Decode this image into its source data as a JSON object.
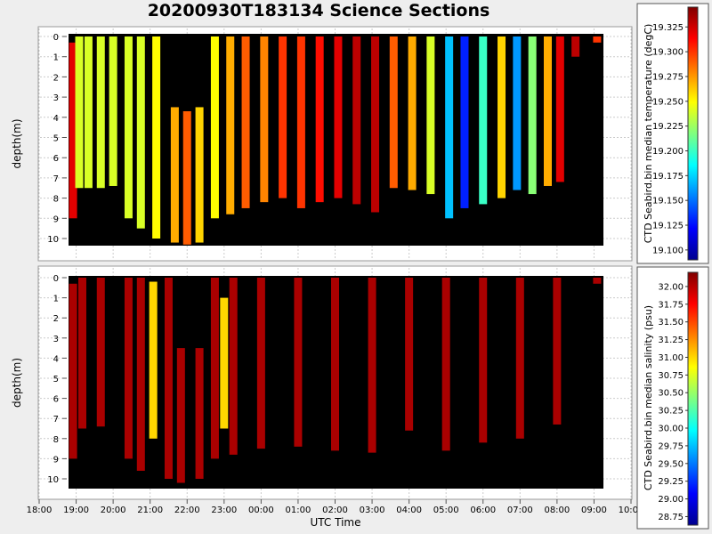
{
  "title": "20200930T183134 Science Sections",
  "chart_data": [
    {
      "type": "heatmap",
      "ylabel": "depth(m)",
      "yticks": [
        0,
        1,
        2,
        3,
        4,
        5,
        6,
        7,
        8,
        9,
        10
      ],
      "ylim": [
        10.4,
        -0.3
      ],
      "xlim": [
        "18:00",
        "10:00"
      ],
      "grid": true,
      "colorbar": {
        "label": "CTD Seabird.bin median temperature (degC)",
        "ticks": [
          "19.100",
          "19.125",
          "19.150",
          "19.175",
          "19.200",
          "19.225",
          "19.250",
          "19.275",
          "19.300",
          "19.325"
        ],
        "range": [
          19.09,
          19.345
        ],
        "colormap": "jet"
      },
      "profiles": [
        {
          "time": "18:55",
          "depth_range": [
            0.3,
            9.0
          ],
          "value": 19.32
        },
        {
          "time": "19:05",
          "depth_range": [
            0.0,
            7.5
          ],
          "value": 19.24
        },
        {
          "time": "19:20",
          "depth_range": [
            0.0,
            7.5
          ],
          "value": 19.24
        },
        {
          "time": "19:40",
          "depth_range": [
            0.0,
            7.5
          ],
          "value": 19.24
        },
        {
          "time": "20:00",
          "depth_range": [
            0.0,
            7.4
          ],
          "value": 19.24
        },
        {
          "time": "20:25",
          "depth_range": [
            0.0,
            9.0
          ],
          "value": 19.24
        },
        {
          "time": "20:45",
          "depth_range": [
            0.0,
            9.5
          ],
          "value": 19.24
        },
        {
          "time": "21:10",
          "depth_range": [
            0.0,
            10.0
          ],
          "value": 19.25
        },
        {
          "time": "21:40",
          "depth_range": [
            3.5,
            10.2
          ],
          "value": 19.27
        },
        {
          "time": "22:00",
          "depth_range": [
            3.7,
            10.3
          ],
          "value": 19.29
        },
        {
          "time": "22:20",
          "depth_range": [
            3.5,
            10.2
          ],
          "value": 19.26
        },
        {
          "time": "22:45",
          "depth_range": [
            0.0,
            9.0
          ],
          "value": 19.25
        },
        {
          "time": "23:10",
          "depth_range": [
            0.0,
            8.8
          ],
          "value": 19.27
        },
        {
          "time": "23:35",
          "depth_range": [
            0.0,
            8.5
          ],
          "value": 19.29
        },
        {
          "time": "00:05",
          "depth_range": [
            0.0,
            8.2
          ],
          "value": 19.28
        },
        {
          "time": "00:35",
          "depth_range": [
            0.0,
            8.0
          ],
          "value": 19.3
        },
        {
          "time": "01:05",
          "depth_range": [
            0.0,
            8.5
          ],
          "value": 19.3
        },
        {
          "time": "01:35",
          "depth_range": [
            0.0,
            8.2
          ],
          "value": 19.31
        },
        {
          "time": "02:05",
          "depth_range": [
            0.0,
            8.0
          ],
          "value": 19.32
        },
        {
          "time": "02:35",
          "depth_range": [
            0.0,
            8.3
          ],
          "value": 19.33
        },
        {
          "time": "03:05",
          "depth_range": [
            0.0,
            8.7
          ],
          "value": 19.33
        },
        {
          "time": "03:35",
          "depth_range": [
            0.0,
            7.5
          ],
          "value": 19.29
        },
        {
          "time": "04:05",
          "depth_range": [
            0.0,
            7.6
          ],
          "value": 19.27
        },
        {
          "time": "04:35",
          "depth_range": [
            0.0,
            7.8
          ],
          "value": 19.24
        },
        {
          "time": "05:05",
          "depth_range": [
            0.0,
            9.0
          ],
          "value": 19.17
        },
        {
          "time": "05:30",
          "depth_range": [
            0.0,
            8.5
          ],
          "value": 19.13
        },
        {
          "time": "06:00",
          "depth_range": [
            0.0,
            8.3
          ],
          "value": 19.2
        },
        {
          "time": "06:30",
          "depth_range": [
            0.0,
            8.0
          ],
          "value": 19.26
        },
        {
          "time": "06:55",
          "depth_range": [
            0.0,
            7.6
          ],
          "value": 19.16
        },
        {
          "time": "07:20",
          "depth_range": [
            0.0,
            7.8
          ],
          "value": 19.22
        },
        {
          "time": "07:45",
          "depth_range": [
            0.0,
            7.4
          ],
          "value": 19.27
        },
        {
          "time": "08:05",
          "depth_range": [
            0.0,
            7.2
          ],
          "value": 19.32
        },
        {
          "time": "08:30",
          "depth_range": [
            0.0,
            1.0
          ],
          "value": 19.33
        },
        {
          "time": "09:05",
          "depth_range": [
            0.0,
            0.3
          ],
          "value": 19.3
        }
      ]
    },
    {
      "type": "heatmap",
      "xlabel": "UTC Time",
      "ylabel": "depth(m)",
      "xticks": [
        "18:00",
        "19:00",
        "20:00",
        "21:00",
        "22:00",
        "23:00",
        "00:00",
        "01:00",
        "02:00",
        "03:00",
        "04:00",
        "05:00",
        "06:00",
        "07:00",
        "08:00",
        "09:00",
        "10:00"
      ],
      "yticks": [
        0,
        1,
        2,
        3,
        4,
        5,
        6,
        7,
        8,
        9,
        10
      ],
      "ylim": [
        10.4,
        -0.3
      ],
      "xlim": [
        "18:00",
        "10:00"
      ],
      "grid": true,
      "colorbar": {
        "label": "CTD Seabird.bin median salinity (psu)",
        "ticks": [
          "28.75",
          "29.00",
          "29.25",
          "29.50",
          "29.75",
          "30.00",
          "30.25",
          "30.50",
          "30.75",
          "31.00",
          "31.25",
          "31.50",
          "31.75",
          "32.00"
        ],
        "range": [
          28.63,
          32.2
        ],
        "colormap": "jet"
      },
      "profiles": [
        {
          "time": "18:55",
          "depth_range": [
            0.3,
            9.0
          ],
          "value": 32.05
        },
        {
          "time": "19:10",
          "depth_range": [
            0.0,
            7.5
          ],
          "value": 32.05
        },
        {
          "time": "19:40",
          "depth_range": [
            0.0,
            7.4
          ],
          "value": 32.05
        },
        {
          "time": "20:25",
          "depth_range": [
            0.0,
            9.0
          ],
          "value": 32.05
        },
        {
          "time": "20:45",
          "depth_range": [
            0.0,
            9.6
          ],
          "value": 32.05
        },
        {
          "time": "21:05",
          "depth_range": [
            0.2,
            8.0
          ],
          "value": 31.0
        },
        {
          "time": "21:30",
          "depth_range": [
            0.0,
            10.0
          ],
          "value": 32.05
        },
        {
          "time": "21:50",
          "depth_range": [
            3.5,
            10.2
          ],
          "value": 32.05
        },
        {
          "time": "22:20",
          "depth_range": [
            3.5,
            10.0
          ],
          "value": 32.05
        },
        {
          "time": "22:45",
          "depth_range": [
            0.0,
            9.0
          ],
          "value": 32.05
        },
        {
          "time": "23:00",
          "depth_range": [
            1.0,
            7.5
          ],
          "value": 31.0
        },
        {
          "time": "23:15",
          "depth_range": [
            0.0,
            8.8
          ],
          "value": 32.05
        },
        {
          "time": "00:00",
          "depth_range": [
            0.0,
            8.5
          ],
          "value": 32.05
        },
        {
          "time": "01:00",
          "depth_range": [
            0.0,
            8.4
          ],
          "value": 32.05
        },
        {
          "time": "02:00",
          "depth_range": [
            0.0,
            8.6
          ],
          "value": 32.05
        },
        {
          "time": "03:00",
          "depth_range": [
            0.0,
            8.7
          ],
          "value": 32.05
        },
        {
          "time": "04:00",
          "depth_range": [
            0.0,
            7.6
          ],
          "value": 32.05
        },
        {
          "time": "05:00",
          "depth_range": [
            0.0,
            8.6
          ],
          "value": 32.05
        },
        {
          "time": "06:00",
          "depth_range": [
            0.0,
            8.2
          ],
          "value": 32.05
        },
        {
          "time": "07:00",
          "depth_range": [
            0.0,
            8.0
          ],
          "value": 32.05
        },
        {
          "time": "08:00",
          "depth_range": [
            0.0,
            7.3
          ],
          "value": 32.05
        },
        {
          "time": "09:05",
          "depth_range": [
            0.0,
            0.3
          ],
          "value": 32.05
        }
      ]
    }
  ]
}
